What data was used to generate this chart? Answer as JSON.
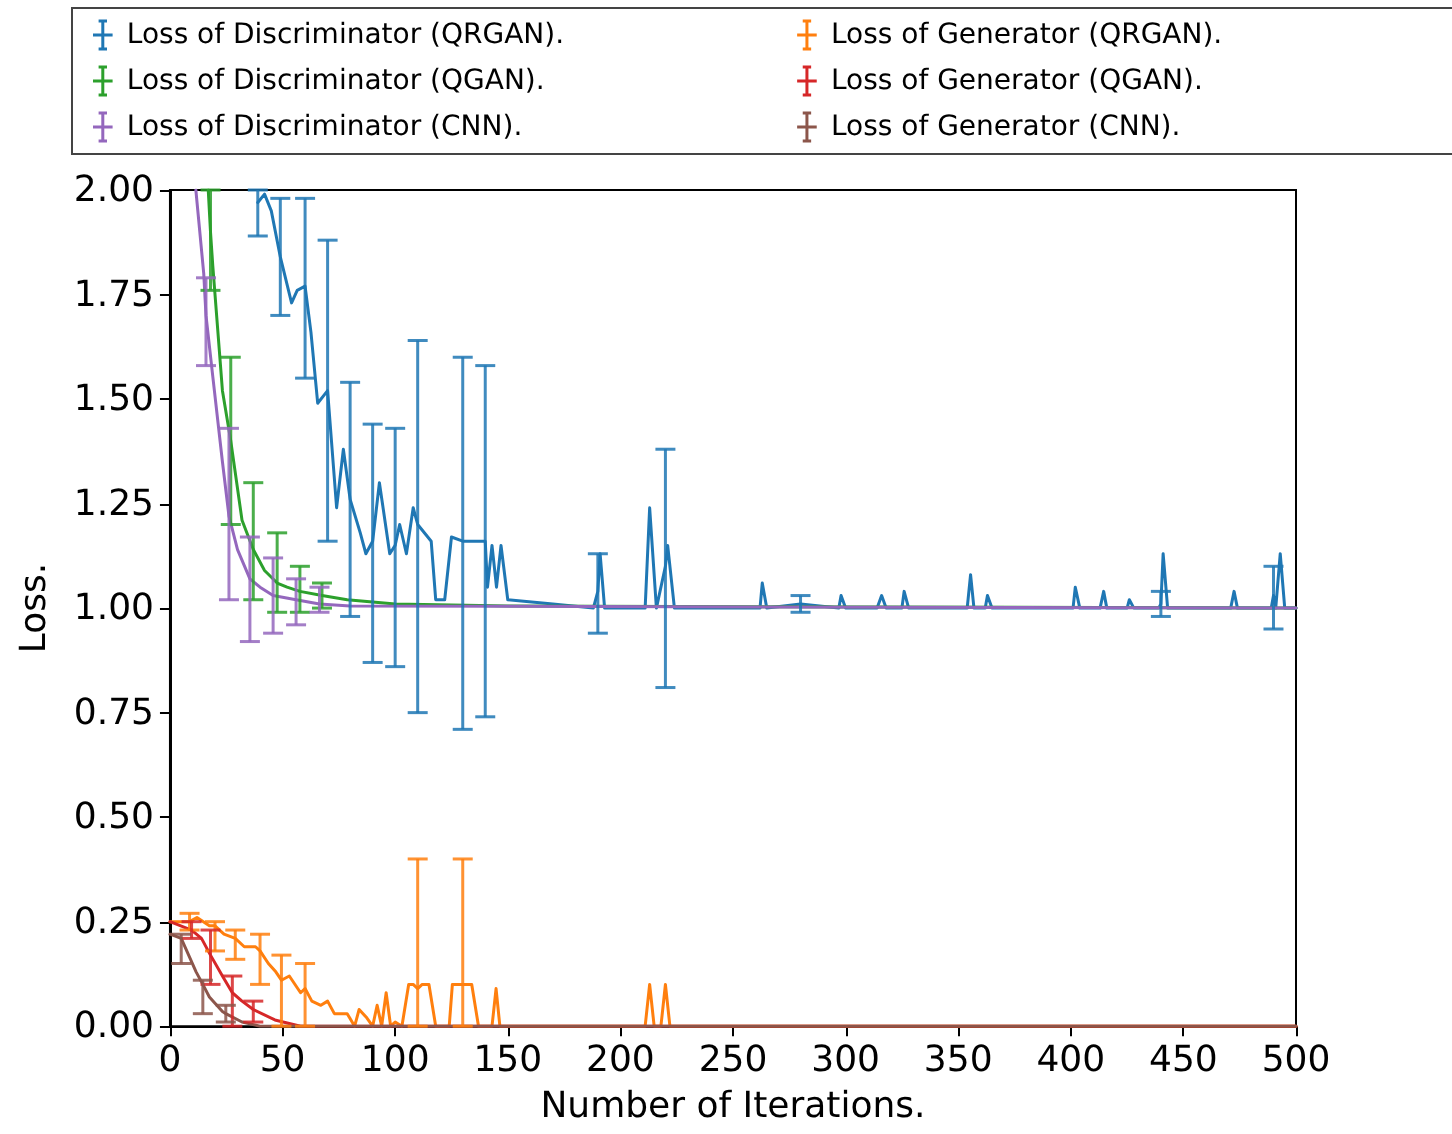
{
  "chart_data": {
    "type": "line",
    "xlabel": "Number of Iterations.",
    "ylabel": "Loss.",
    "xlim": [
      0,
      500
    ],
    "ylim": [
      0,
      2
    ],
    "xticks": [
      0,
      50,
      100,
      150,
      200,
      250,
      300,
      350,
      400,
      450,
      500
    ],
    "yticks": [
      {
        "value": 0,
        "label": "0.00"
      },
      {
        "value": 0.25,
        "label": "0.25"
      },
      {
        "value": 0.5,
        "label": "0.50"
      },
      {
        "value": 0.75,
        "label": "0.75"
      },
      {
        "value": 1,
        "label": "1.00"
      },
      {
        "value": 1.25,
        "label": "1.25"
      },
      {
        "value": 1.5,
        "label": "1.50"
      },
      {
        "value": 1.75,
        "label": "1.75"
      },
      {
        "value": 2,
        "label": "2.00"
      }
    ],
    "legend": "top",
    "marker": "none",
    "line_style": "solid",
    "series": [
      {
        "name": "Loss of Discriminator (QRGAN).",
        "color": "#1f77b4",
        "x": [
          39,
          42,
          45,
          49,
          54,
          56.5,
          60,
          62.6,
          65.6,
          70,
          74,
          77,
          80,
          84.5,
          87,
          90,
          93,
          97.6,
          100,
          102,
          105,
          108,
          110,
          116,
          118,
          122,
          125,
          130,
          137,
          140,
          141,
          143,
          145,
          147,
          150,
          170,
          188,
          190,
          191,
          193,
          211,
          213,
          216,
          220,
          221,
          224,
          262,
          263,
          265,
          280,
          297,
          298,
          300,
          314,
          316,
          318,
          325,
          326,
          328,
          354,
          355.5,
          357,
          362,
          363,
          365,
          401,
          402,
          404,
          413,
          414.6,
          416,
          425,
          426,
          428,
          439,
          440,
          441,
          443,
          471,
          472.5,
          474,
          489,
          490,
          491,
          493,
          495,
          500
        ],
        "values": [
          1.97,
          1.99,
          1.95,
          1.84,
          1.73,
          1.76,
          1.77,
          1.66,
          1.49,
          1.52,
          1.24,
          1.38,
          1.26,
          1.18,
          1.13,
          1.16,
          1.3,
          1.13,
          1.15,
          1.2,
          1.13,
          1.24,
          1.2,
          1.16,
          1.02,
          1.02,
          1.17,
          1.16,
          1.16,
          1.16,
          1.05,
          1.15,
          1.05,
          1.15,
          1.02,
          1.01,
          1,
          1.04,
          1.13,
          1,
          1,
          1.24,
          1,
          1.1,
          1.15,
          1,
          1,
          1.06,
          1,
          1.01,
          1,
          1.03,
          1,
          1,
          1.03,
          1,
          1,
          1.04,
          1,
          1,
          1.08,
          1,
          1,
          1.03,
          1,
          1,
          1.05,
          1,
          1,
          1.04,
          1,
          1,
          1.02,
          1,
          1,
          1.01,
          1.13,
          1,
          1,
          1.04,
          1,
          1,
          1.03,
          1,
          1.13,
          1,
          1
        ],
        "errors": [
          [
            1.89,
            2.0
          ],
          null,
          null,
          [
            1.7,
            1.98
          ],
          null,
          null,
          [
            1.55,
            1.98
          ],
          null,
          null,
          [
            1.16,
            1.88
          ],
          null,
          null,
          [
            0.98,
            1.54
          ],
          null,
          null,
          [
            0.87,
            1.44
          ],
          null,
          null,
          [
            0.86,
            1.43
          ],
          null,
          null,
          null,
          [
            0.75,
            1.64
          ],
          null,
          null,
          null,
          null,
          [
            0.71,
            1.6
          ],
          null,
          [
            0.74,
            1.58
          ],
          null,
          null,
          null,
          null,
          null,
          null,
          null,
          [
            0.94,
            1.13
          ],
          null,
          null,
          null,
          null,
          null,
          [
            0.81,
            1.38
          ],
          null,
          null,
          null,
          null,
          null,
          [
            0.99,
            1.03
          ],
          null,
          null,
          null,
          null,
          null,
          null,
          null,
          null,
          null,
          null,
          null,
          null,
          null,
          null,
          null,
          null,
          null,
          null,
          null,
          null,
          null,
          null,
          null,
          null,
          null,
          [
            0.98,
            1.04
          ],
          null,
          null,
          null,
          null,
          null,
          null,
          [
            0.95,
            1.1
          ],
          null,
          null,
          null,
          null
        ]
      },
      {
        "name": "Loss of Discriminator (QGAN).",
        "color": "#2ca02c",
        "x": [
          17,
          18,
          19,
          23.3,
          27,
          32,
          37,
          42,
          47.6,
          52,
          57.7,
          67.5,
          78.7,
          100,
          150,
          500
        ],
        "values": [
          2.0,
          1.9,
          1.82,
          1.52,
          1.4,
          1.21,
          1.14,
          1.09,
          1.06,
          1.05,
          1.04,
          1.03,
          1.02,
          1.01,
          1.005,
          1.0
        ],
        "errors": [
          null,
          [
            1.76,
            2.0
          ],
          null,
          null,
          [
            1.2,
            1.6
          ],
          null,
          [
            1.02,
            1.3
          ],
          null,
          [
            0.99,
            1.18
          ],
          null,
          [
            0.99,
            1.1
          ],
          [
            1.0,
            1.06
          ],
          null,
          null,
          null,
          null
        ]
      },
      {
        "name": "Loss of Discriminator (CNN).",
        "color": "#9467bd",
        "x": [
          11.5,
          15,
          16,
          19,
          23.3,
          26.2,
          30,
          35.5,
          40,
          45.8,
          56,
          66.4,
          80,
          500
        ],
        "values": [
          2.0,
          1.8,
          1.7,
          1.555,
          1.35,
          1.22,
          1.14,
          1.07,
          1.05,
          1.03,
          1.02,
          1.01,
          1.005,
          1.0
        ],
        "errors": [
          null,
          null,
          [
            1.58,
            1.79
          ],
          null,
          null,
          [
            1.02,
            1.43
          ],
          null,
          [
            0.92,
            1.17
          ],
          null,
          [
            0.94,
            1.12
          ],
          [
            0.96,
            1.07
          ],
          [
            0.99,
            1.05
          ],
          null,
          null
        ]
      },
      {
        "name": "Loss of Generator (QRGAN).",
        "color": "#ff7f0e",
        "x": [
          0,
          4,
          8.7,
          12,
          17.5,
          20,
          24,
          29,
          33,
          38,
          40,
          43.7,
          47,
          49.5,
          53,
          58,
          60,
          63,
          67,
          70,
          73,
          78.7,
          82,
          84,
          87.4,
          90,
          92,
          94,
          96,
          98,
          100,
          103,
          106,
          108,
          110,
          112,
          115,
          118,
          124,
          125.4,
          128,
          130,
          132,
          134,
          137,
          143,
          144.8,
          146.5,
          148,
          211,
          213,
          215,
          218,
          220,
          222,
          500
        ],
        "values": [
          0.25,
          0.25,
          0.25,
          0.26,
          0.24,
          0.24,
          0.22,
          0.21,
          0.19,
          0.19,
          0.18,
          0.15,
          0.13,
          0.11,
          0.12,
          0.08,
          0.09,
          0.06,
          0.05,
          0.06,
          0.03,
          0.03,
          0,
          0.04,
          0.02,
          0,
          0.05,
          0,
          0.08,
          0,
          0.01,
          0,
          0.1,
          0.1,
          0.09,
          0.1,
          0.1,
          0,
          0,
          0.1,
          0.1,
          0.1,
          0.1,
          0.1,
          0,
          0,
          0.09,
          0,
          0,
          0,
          0.1,
          0,
          0,
          0.1,
          0,
          0
        ],
        "errors": [
          null,
          null,
          [
            0.23,
            0.27
          ],
          null,
          null,
          [
            0.18,
            0.25
          ],
          null,
          [
            0.16,
            0.23
          ],
          null,
          null,
          [
            0.1,
            0.22
          ],
          null,
          null,
          [
            0,
            0.17
          ],
          null,
          null,
          [
            0,
            0.15
          ],
          null,
          null,
          null,
          null,
          null,
          null,
          null,
          null,
          null,
          null,
          null,
          null,
          null,
          null,
          null,
          null,
          null,
          [
            0,
            0.4
          ],
          null,
          null,
          null,
          null,
          null,
          null,
          [
            0,
            0.4
          ],
          null,
          null,
          null,
          null,
          null,
          null,
          null,
          null,
          null,
          null,
          null,
          null,
          null,
          null
        ]
      },
      {
        "name": "Loss of Generator (QGAN).",
        "color": "#d62728",
        "x": [
          0,
          9.6,
          14,
          18,
          23.3,
          27.7,
          32,
          37,
          46.6,
          58,
          500
        ],
        "values": [
          0.25,
          0.23,
          0.21,
          0.17,
          0.12,
          0.08,
          0.06,
          0.04,
          0.015,
          0,
          0
        ],
        "errors": [
          null,
          [
            0.21,
            0.25
          ],
          null,
          [
            0.1,
            0.23
          ],
          null,
          [
            0,
            0.12
          ],
          null,
          [
            0.01,
            0.06
          ],
          null,
          null,
          null
        ]
      },
      {
        "name": "Loss of Generator (CNN).",
        "color": "#8c564b",
        "x": [
          0,
          5,
          11.6,
          14.6,
          17.5,
          23.3,
          24.8,
          32,
          40,
          500
        ],
        "values": [
          0.22,
          0.21,
          0.13,
          0.1,
          0.07,
          0.035,
          0.03,
          0.01,
          0,
          0
        ],
        "errors": [
          null,
          [
            0.15,
            0.22
          ],
          null,
          [
            0.03,
            0.11
          ],
          null,
          null,
          [
            0.01,
            0.05
          ],
          null,
          null,
          null
        ]
      }
    ]
  }
}
